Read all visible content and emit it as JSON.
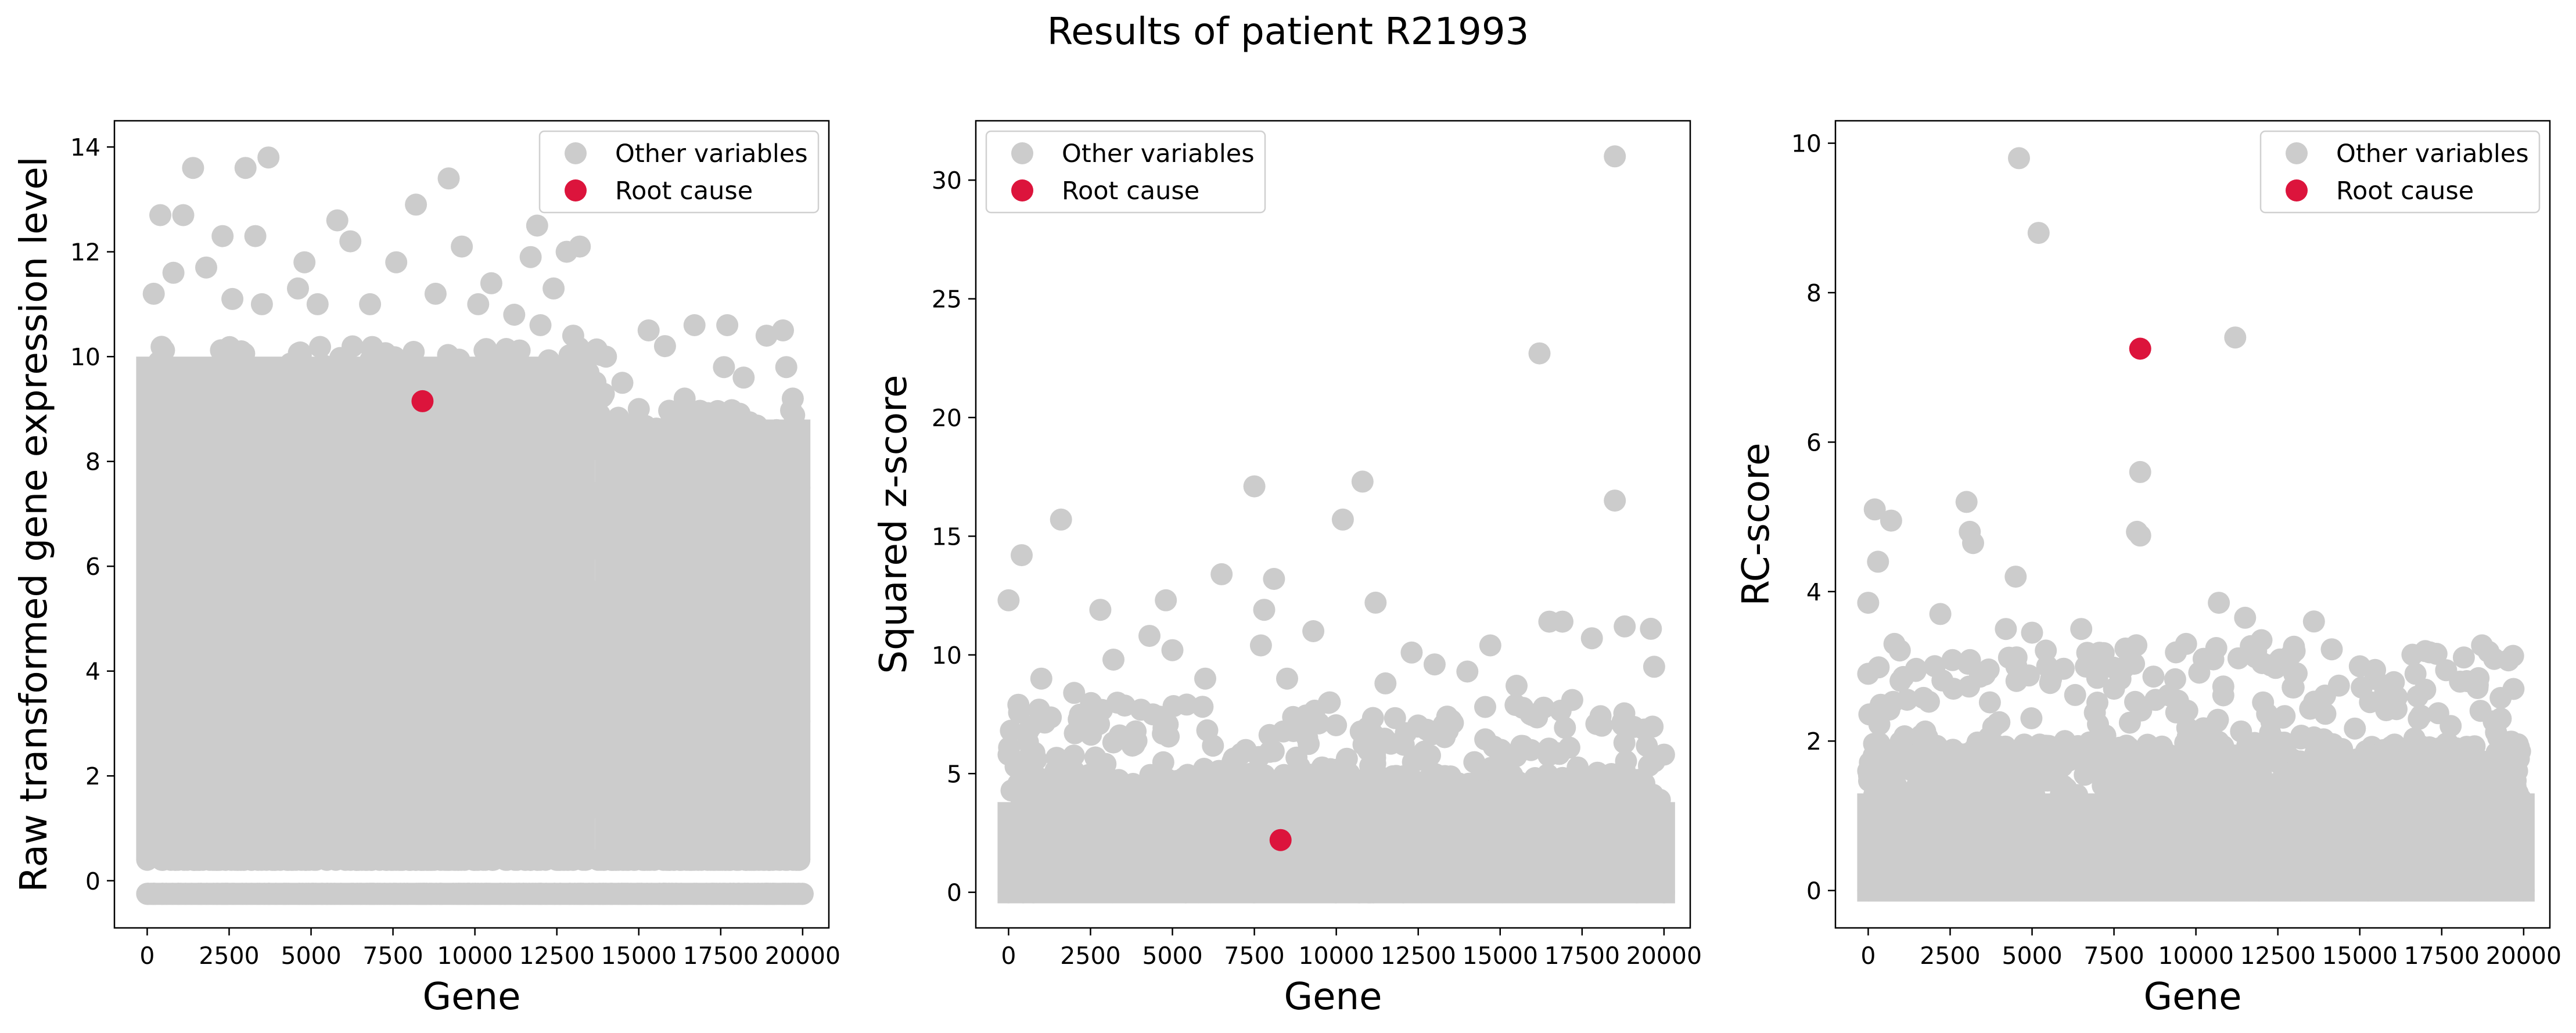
{
  "figure": {
    "title": "Results of patient R21993"
  },
  "colors": {
    "other": "#cccccc",
    "root": "#dc143c"
  },
  "chart_data": [
    {
      "type": "scatter",
      "name": "raw-expression",
      "xlabel": "Gene",
      "ylabel": "Raw transformed gene expression level",
      "xlim": [
        -1000,
        20800
      ],
      "ylim": [
        -0.9,
        14.5
      ],
      "xticks": [
        0,
        2500,
        5000,
        7500,
        10000,
        12500,
        15000,
        17500,
        20000
      ],
      "yticks": [
        0,
        2,
        4,
        6,
        8,
        10,
        12,
        14
      ],
      "legend": {
        "position": "top-right",
        "entries": [
          "Other variables",
          "Root cause"
        ]
      },
      "series": [
        {
          "name": "Other variables",
          "density_note": "dense band from about 0.4 to 10 across genes 0-20000, floor row at -0.25",
          "points": [
            [
              1400,
              13.6
            ],
            [
              3000,
              13.6
            ],
            [
              3700,
              13.8
            ],
            [
              9200,
              13.4
            ],
            [
              400,
              12.7
            ],
            [
              1100,
              12.7
            ],
            [
              5800,
              12.6
            ],
            [
              8200,
              12.9
            ],
            [
              2300,
              12.3
            ],
            [
              3300,
              12.3
            ],
            [
              6200,
              12.2
            ],
            [
              9600,
              12.1
            ],
            [
              11900,
              12.5
            ],
            [
              12800,
              12.0
            ],
            [
              13200,
              12.1
            ],
            [
              4800,
              11.8
            ],
            [
              7600,
              11.8
            ],
            [
              800,
              11.6
            ],
            [
              1800,
              11.7
            ],
            [
              10500,
              11.4
            ],
            [
              11700,
              11.9
            ],
            [
              12400,
              11.3
            ],
            [
              4600,
              11.3
            ],
            [
              14000,
              10.0
            ],
            [
              15300,
              10.5
            ],
            [
              15800,
              10.2
            ],
            [
              16700,
              10.6
            ],
            [
              17700,
              10.6
            ],
            [
              18900,
              10.4
            ],
            [
              19400,
              10.5
            ],
            [
              19500,
              9.8
            ],
            [
              18200,
              9.6
            ],
            [
              17600,
              9.8
            ],
            [
              16400,
              9.2
            ],
            [
              15000,
              9.0
            ],
            [
              14500,
              9.5
            ],
            [
              19700,
              9.2
            ],
            [
              19800,
              8.6
            ],
            [
              17200,
              8.8
            ],
            [
              16000,
              8.8
            ],
            [
              14200,
              8.5
            ],
            [
              13800,
              8.9
            ],
            [
              19600,
              8.3
            ],
            [
              18600,
              8.0
            ],
            [
              15600,
              7.8
            ],
            [
              16900,
              8.1
            ],
            [
              19900,
              7.5
            ],
            [
              19700,
              7.0
            ],
            [
              0,
              -0.25
            ],
            [
              20000,
              -0.25
            ],
            [
              0,
              0.4
            ],
            [
              19800,
              0.4
            ],
            [
              200,
              11.2
            ],
            [
              5200,
              11.0
            ],
            [
              6800,
              11.0
            ],
            [
              8800,
              11.2
            ],
            [
              10100,
              11.0
            ],
            [
              11200,
              10.8
            ],
            [
              12000,
              10.6
            ],
            [
              13000,
              10.4
            ],
            [
              3500,
              11.0
            ],
            [
              2600,
              11.1
            ]
          ]
        },
        {
          "name": "Root cause",
          "points": [
            [
              8400,
              9.15
            ]
          ]
        }
      ]
    },
    {
      "type": "scatter",
      "name": "squared-zscore",
      "xlabel": "Gene",
      "ylabel": "Squared z-score",
      "xlim": [
        -1000,
        20800
      ],
      "ylim": [
        -1.5,
        32.5
      ],
      "xticks": [
        0,
        2500,
        5000,
        7500,
        10000,
        12500,
        15000,
        17500,
        20000
      ],
      "yticks": [
        0,
        5,
        10,
        15,
        20,
        25,
        30
      ],
      "legend": {
        "position": "top-left",
        "entries": [
          "Other variables",
          "Root cause"
        ]
      },
      "series": [
        {
          "name": "Other variables",
          "density_note": "dense band from 0 to about 5 across genes 0-20000",
          "points": [
            [
              18500,
              31.0
            ],
            [
              16200,
              22.7
            ],
            [
              7500,
              17.1
            ],
            [
              10800,
              17.3
            ],
            [
              18500,
              16.5
            ],
            [
              1600,
              15.7
            ],
            [
              10200,
              15.7
            ],
            [
              400,
              14.2
            ],
            [
              6500,
              13.4
            ],
            [
              8100,
              13.2
            ],
            [
              0,
              12.3
            ],
            [
              4800,
              12.3
            ],
            [
              11200,
              12.2
            ],
            [
              2800,
              11.9
            ],
            [
              7800,
              11.9
            ],
            [
              16500,
              11.4
            ],
            [
              16900,
              11.4
            ],
            [
              18800,
              11.2
            ],
            [
              19600,
              11.1
            ],
            [
              9300,
              11.0
            ],
            [
              4300,
              10.8
            ],
            [
              17800,
              10.7
            ],
            [
              7700,
              10.4
            ],
            [
              14700,
              10.4
            ],
            [
              12300,
              10.1
            ],
            [
              5000,
              10.2
            ],
            [
              19700,
              9.5
            ],
            [
              13000,
              9.6
            ],
            [
              14000,
              9.3
            ],
            [
              3200,
              9.8
            ],
            [
              6000,
              9.0
            ],
            [
              8500,
              9.0
            ],
            [
              1000,
              9.0
            ],
            [
              11500,
              8.8
            ],
            [
              15500,
              8.7
            ],
            [
              2000,
              8.4
            ],
            [
              300,
              7.9
            ],
            [
              9800,
              8.0
            ],
            [
              17200,
              8.1
            ],
            [
              600,
              6.8
            ],
            [
              0,
              5.8
            ],
            [
              20000,
              5.8
            ],
            [
              20000,
              0
            ],
            [
              0,
              0
            ]
          ]
        },
        {
          "name": "Root cause",
          "points": [
            [
              8300,
              2.2
            ]
          ]
        }
      ]
    },
    {
      "type": "scatter",
      "name": "rc-score",
      "xlabel": "Gene",
      "ylabel": "RC-score",
      "xlim": [
        -1000,
        20800
      ],
      "ylim": [
        -0.5,
        10.3
      ],
      "xticks": [
        0,
        2500,
        5000,
        7500,
        10000,
        12500,
        15000,
        17500,
        20000
      ],
      "yticks": [
        0,
        2,
        4,
        6,
        8,
        10
      ],
      "legend": {
        "position": "top-right",
        "entries": [
          "Other variables",
          "Root cause"
        ]
      },
      "series": [
        {
          "name": "Other variables",
          "density_note": "dense band from 0 to about 2 across genes 0-20000",
          "points": [
            [
              4600,
              9.8
            ],
            [
              5200,
              8.8
            ],
            [
              11200,
              7.4
            ],
            [
              8300,
              5.6
            ],
            [
              8200,
              4.8
            ],
            [
              8300,
              4.75
            ],
            [
              200,
              5.1
            ],
            [
              3000,
              5.2
            ],
            [
              3100,
              4.8
            ],
            [
              3200,
              4.65
            ],
            [
              700,
              4.95
            ],
            [
              300,
              4.4
            ],
            [
              4500,
              4.2
            ],
            [
              0,
              3.85
            ],
            [
              10700,
              3.85
            ],
            [
              13600,
              3.6
            ],
            [
              9700,
              3.3
            ],
            [
              12000,
              3.35
            ],
            [
              4200,
              3.5
            ],
            [
              5000,
              3.45
            ],
            [
              6500,
              3.5
            ],
            [
              800,
              3.3
            ],
            [
              2200,
              3.7
            ],
            [
              11500,
              3.65
            ],
            [
              15000,
              3.0
            ],
            [
              19100,
              3.1
            ],
            [
              13000,
              2.9
            ],
            [
              16700,
              2.9
            ],
            [
              0,
              2.9
            ],
            [
              2600,
              2.7
            ],
            [
              7500,
              2.7
            ],
            [
              18600,
              2.75
            ],
            [
              19300,
              2.3
            ],
            [
              400,
              2.4
            ],
            [
              6000,
              2.0
            ],
            [
              17400,
              1.9
            ],
            [
              19800,
              1.6
            ],
            [
              0,
              1.6
            ],
            [
              20000,
              0
            ],
            [
              0,
              0
            ]
          ]
        },
        {
          "name": "Root cause",
          "points": [
            [
              8300,
              7.25
            ]
          ]
        }
      ]
    }
  ]
}
